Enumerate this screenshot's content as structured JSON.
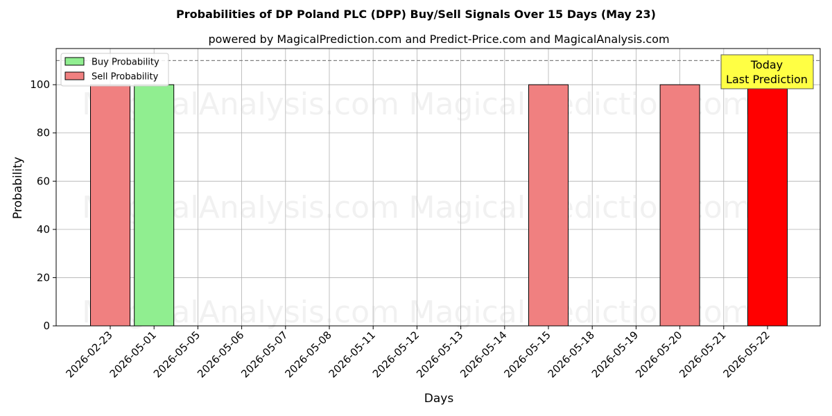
{
  "chart_data": {
    "type": "bar",
    "title": "Probabilities of DP Poland PLC (DPP) Buy/Sell Signals Over 15 Days (May 23)",
    "subtitle": "powered by MagicalPrediction.com and Predict-Price.com and MagicalAnalysis.com",
    "xlabel": "Days",
    "ylabel": "Probability",
    "ylim": [
      0,
      115
    ],
    "yticks": [
      0,
      20,
      40,
      60,
      80,
      100
    ],
    "grid": true,
    "legend_position": "top-left",
    "categories": [
      "2026-02-23",
      "2026-05-01",
      "2026-05-05",
      "2026-05-06",
      "2026-05-07",
      "2026-05-08",
      "2026-05-11",
      "2026-05-12",
      "2026-05-13",
      "2026-05-14",
      "2026-05-15",
      "2026-05-18",
      "2026-05-19",
      "2026-05-20",
      "2026-05-21",
      "2026-05-22"
    ],
    "series": [
      {
        "name": "Buy Probability",
        "color": "#90ee90",
        "values": [
          0,
          100,
          0,
          0,
          0,
          0,
          0,
          0,
          0,
          0,
          0,
          0,
          0,
          0,
          0,
          0
        ]
      },
      {
        "name": "Sell Probability",
        "color": "#f08080",
        "values": [
          100,
          0,
          0,
          0,
          0,
          0,
          0,
          0,
          0,
          0,
          100,
          0,
          0,
          100,
          0,
          100
        ]
      }
    ],
    "highlight": {
      "category": "2026-05-22",
      "color": "#ff0000"
    },
    "reference_line": {
      "y": 110,
      "style": "dashed",
      "color": "#808080"
    },
    "annotation": {
      "lines": [
        "Today",
        "Last Prediction"
      ],
      "background": "#ffff44",
      "position": "top-right"
    },
    "watermarks": [
      "MagicalAnalysis.com",
      "MagicalPrediction.com"
    ]
  }
}
